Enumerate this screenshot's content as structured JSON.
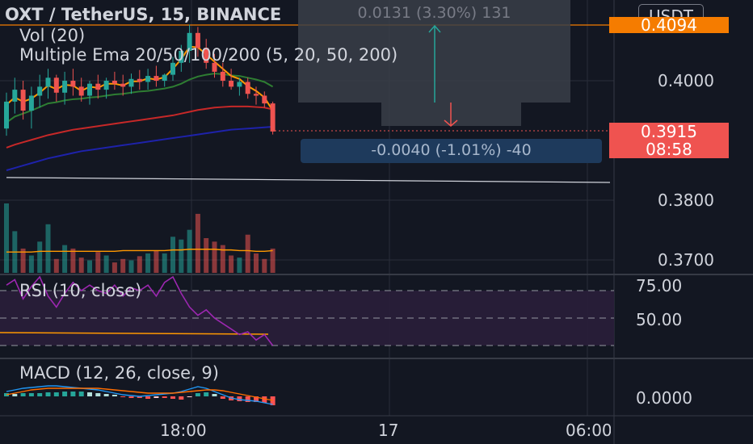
{
  "header": {
    "symbol": "OXT / TetherUS, 15, BINANCE",
    "vol": "Vol (20)",
    "ema": "Multiple Ema 20/50/100/200 (5, 20, 50, 200)",
    "rsi": "RSI (10, close)",
    "macd": "MACD (12, 26, close, 9)"
  },
  "currency_button": "USDT",
  "price_axis": {
    "labels": [
      "0.4000",
      "0.3800",
      "0.3700"
    ],
    "rsi_labels": [
      "75.00",
      "50.00"
    ],
    "macd_labels": [
      "0.0000"
    ]
  },
  "time_axis": [
    "18:00",
    "17",
    "06:00"
  ],
  "price_tags": {
    "top_partial": "0.4094",
    "current_price": "0.3915",
    "countdown": "08:58"
  },
  "measure": {
    "upper_label": "0.0131 (3.30%) 131",
    "lower_label": "-0.0040 (-1.01%) -40"
  },
  "colors": {
    "up": "#26a69a",
    "down": "#ef5350",
    "background": "#131722",
    "ema_fast": "#ff9800",
    "ema_mid": "#2e7d32",
    "ema_slow": "#c62828",
    "ema_200": "#1e22aa",
    "rsi_line": "#9c27b0",
    "macd_line": "#2196f3",
    "signal_line": "#ff6d00"
  },
  "chart_data": [
    {
      "type": "candlestick",
      "title": "OXT / TetherUS, 15, BINANCE",
      "ylim": [
        0.366,
        0.4094
      ],
      "candles": [
        {
          "o": 0.392,
          "h": 0.398,
          "l": 0.3908,
          "c": 0.3965
        },
        {
          "o": 0.3965,
          "h": 0.4005,
          "l": 0.3945,
          "c": 0.3985
        },
        {
          "o": 0.3985,
          "h": 0.4,
          "l": 0.3935,
          "c": 0.395
        },
        {
          "o": 0.395,
          "h": 0.399,
          "l": 0.392,
          "c": 0.3975
        },
        {
          "o": 0.3975,
          "h": 0.401,
          "l": 0.3955,
          "c": 0.399
        },
        {
          "o": 0.399,
          "h": 0.402,
          "l": 0.397,
          "c": 0.4005
        },
        {
          "o": 0.4005,
          "h": 0.401,
          "l": 0.3965,
          "c": 0.398
        },
        {
          "o": 0.398,
          "h": 0.4015,
          "l": 0.396,
          "c": 0.4
        },
        {
          "o": 0.4,
          "h": 0.402,
          "l": 0.3975,
          "c": 0.399
        },
        {
          "o": 0.399,
          "h": 0.4005,
          "l": 0.3965,
          "c": 0.3975
        },
        {
          "o": 0.3975,
          "h": 0.4,
          "l": 0.396,
          "c": 0.3995
        },
        {
          "o": 0.3995,
          "h": 0.401,
          "l": 0.397,
          "c": 0.3985
        },
        {
          "o": 0.3985,
          "h": 0.4005,
          "l": 0.397,
          "c": 0.4
        },
        {
          "o": 0.4,
          "h": 0.4015,
          "l": 0.3985,
          "c": 0.3995
        },
        {
          "o": 0.3995,
          "h": 0.401,
          "l": 0.3975,
          "c": 0.399
        },
        {
          "o": 0.399,
          "h": 0.4012,
          "l": 0.3978,
          "c": 0.4003
        },
        {
          "o": 0.4003,
          "h": 0.4018,
          "l": 0.3985,
          "c": 0.3998
        },
        {
          "o": 0.3998,
          "h": 0.402,
          "l": 0.3985,
          "c": 0.4008
        },
        {
          "o": 0.4008,
          "h": 0.4025,
          "l": 0.399,
          "c": 0.4
        },
        {
          "o": 0.4,
          "h": 0.4012,
          "l": 0.399,
          "c": 0.401
        },
        {
          "o": 0.401,
          "h": 0.404,
          "l": 0.4,
          "c": 0.403
        },
        {
          "o": 0.403,
          "h": 0.406,
          "l": 0.4015,
          "c": 0.405
        },
        {
          "o": 0.405,
          "h": 0.4094,
          "l": 0.403,
          "c": 0.408
        },
        {
          "o": 0.408,
          "h": 0.409,
          "l": 0.404,
          "c": 0.4055
        },
        {
          "o": 0.4055,
          "h": 0.407,
          "l": 0.402,
          "c": 0.403
        },
        {
          "o": 0.403,
          "h": 0.4045,
          "l": 0.4005,
          "c": 0.4015
        },
        {
          "o": 0.4015,
          "h": 0.403,
          "l": 0.399,
          "c": 0.4
        },
        {
          "o": 0.4,
          "h": 0.402,
          "l": 0.3985,
          "c": 0.399
        },
        {
          "o": 0.399,
          "h": 0.4005,
          "l": 0.3975,
          "c": 0.3998
        },
        {
          "o": 0.3998,
          "h": 0.4005,
          "l": 0.397,
          "c": 0.3978
        },
        {
          "o": 0.3978,
          "h": 0.399,
          "l": 0.396,
          "c": 0.3975
        },
        {
          "o": 0.3975,
          "h": 0.3982,
          "l": 0.3955,
          "c": 0.3962
        },
        {
          "o": 0.3962,
          "h": 0.3965,
          "l": 0.391,
          "c": 0.3915
        }
      ],
      "ema_fast": [
        0.396,
        0.3972,
        0.3965,
        0.397,
        0.398,
        0.3992,
        0.3986,
        0.3993,
        0.3992,
        0.3983,
        0.399,
        0.3988,
        0.3995,
        0.3995,
        0.3992,
        0.3999,
        0.3999,
        0.4004,
        0.4002,
        0.4006,
        0.402,
        0.4036,
        0.4057,
        0.4056,
        0.4044,
        0.4032,
        0.402,
        0.4008,
        0.4003,
        0.3991,
        0.3983,
        0.3972,
        0.395
      ],
      "ema_mid": [
        0.393,
        0.394,
        0.3945,
        0.395,
        0.3956,
        0.3962,
        0.3964,
        0.3967,
        0.3969,
        0.397,
        0.3972,
        0.3973,
        0.3975,
        0.3977,
        0.3978,
        0.398,
        0.3982,
        0.3983,
        0.3985,
        0.3987,
        0.399,
        0.3995,
        0.4002,
        0.4007,
        0.401,
        0.4012,
        0.4011,
        0.4009,
        0.4008,
        0.4005,
        0.4002,
        0.3998,
        0.399
      ],
      "ema_slow": [
        0.3888,
        0.3893,
        0.3897,
        0.3901,
        0.3905,
        0.3909,
        0.3912,
        0.3915,
        0.3918,
        0.392,
        0.3922,
        0.3924,
        0.3926,
        0.3928,
        0.393,
        0.3932,
        0.3934,
        0.3936,
        0.3938,
        0.394,
        0.3942,
        0.3945,
        0.3948,
        0.3951,
        0.3953,
        0.3955,
        0.3956,
        0.3957,
        0.3957,
        0.3957,
        0.3956,
        0.3955,
        0.3952
      ],
      "ema_200": [
        0.385,
        0.3854,
        0.3858,
        0.3862,
        0.3866,
        0.387,
        0.3873,
        0.3876,
        0.3879,
        0.3882,
        0.3884,
        0.3886,
        0.3888,
        0.389,
        0.3892,
        0.3894,
        0.3896,
        0.3898,
        0.39,
        0.3902,
        0.3904,
        0.3906,
        0.3908,
        0.391,
        0.3912,
        0.3914,
        0.3916,
        0.3918,
        0.3919,
        0.392,
        0.3921,
        0.3922,
        0.3923
      ],
      "volume": [
        100,
        60,
        35,
        25,
        45,
        70,
        20,
        40,
        35,
        22,
        18,
        30,
        25,
        15,
        20,
        18,
        24,
        28,
        32,
        28,
        52,
        48,
        62,
        85,
        50,
        45,
        40,
        25,
        22,
        55,
        28,
        20,
        35
      ],
      "volume_ma": [
        30,
        30,
        30,
        30,
        31,
        31,
        31,
        31,
        31,
        31,
        31,
        31,
        31,
        31,
        32,
        32,
        32,
        32,
        32,
        32,
        33,
        33,
        34,
        34,
        34,
        34,
        33,
        33,
        32,
        32,
        31,
        31,
        32
      ],
      "trendline": {
        "from": [
          0,
          0.3838
        ],
        "to": [
          60,
          0.3886
        ]
      }
    },
    {
      "type": "line",
      "title": "RSI (10, close)",
      "levels": [
        70,
        50,
        30
      ],
      "ylim": [
        0,
        100
      ],
      "values": [
        74,
        78,
        64,
        73,
        80,
        66,
        58,
        68,
        76,
        70,
        74,
        70,
        68,
        74,
        66,
        72,
        70,
        74,
        66,
        76,
        80,
        68,
        58,
        52,
        56,
        50,
        46,
        42,
        38,
        40,
        34,
        38,
        30
      ]
    },
    {
      "type": "bar",
      "title": "MACD (12, 26, close, 9)",
      "ylim": [
        -0.0015,
        0.0015
      ],
      "histogram": [
        0.0004,
        0.0003,
        0.0004,
        0.0004,
        0.0004,
        0.0005,
        0.0005,
        0.0006,
        0.0006,
        0.0006,
        0.0005,
        0.0004,
        0.0003,
        0.0002,
        -0.0001,
        -0.0002,
        -0.0002,
        -0.0003,
        -0.0002,
        -0.0002,
        -0.0003,
        -0.0004,
        -0.0001,
        0.0004,
        0.0005,
        0.0003,
        -0.0003,
        -0.0005,
        -0.0006,
        -0.0007,
        -0.0007,
        -0.0008,
        -0.0011
      ],
      "macd_line": [
        0.0006,
        0.0008,
        0.001,
        0.0011,
        0.0012,
        0.0013,
        0.0013,
        0.0012,
        0.0011,
        0.001,
        0.0009,
        0.0008,
        0.0006,
        0.0004,
        0.0002,
        0.0001,
        0.0,
        0.0001,
        0.0002,
        0.0003,
        0.0004,
        0.0006,
        0.0009,
        0.0012,
        0.001,
        0.0006,
        0.0002,
        -0.0002,
        -0.0004,
        -0.0005,
        -0.0006,
        -0.0008,
        -0.001
      ],
      "signal_line": [
        0.0002,
        0.0004,
        0.0006,
        0.0008,
        0.0009,
        0.001,
        0.001,
        0.001,
        0.001,
        0.001,
        0.001,
        0.001,
        0.0009,
        0.0008,
        0.0007,
        0.0006,
        0.0005,
        0.0004,
        0.0004,
        0.0004,
        0.0004,
        0.0005,
        0.0006,
        0.0007,
        0.0008,
        0.0008,
        0.0007,
        0.0005,
        0.0003,
        0.0001,
        -0.0001,
        -0.0003,
        -0.0005
      ]
    }
  ]
}
